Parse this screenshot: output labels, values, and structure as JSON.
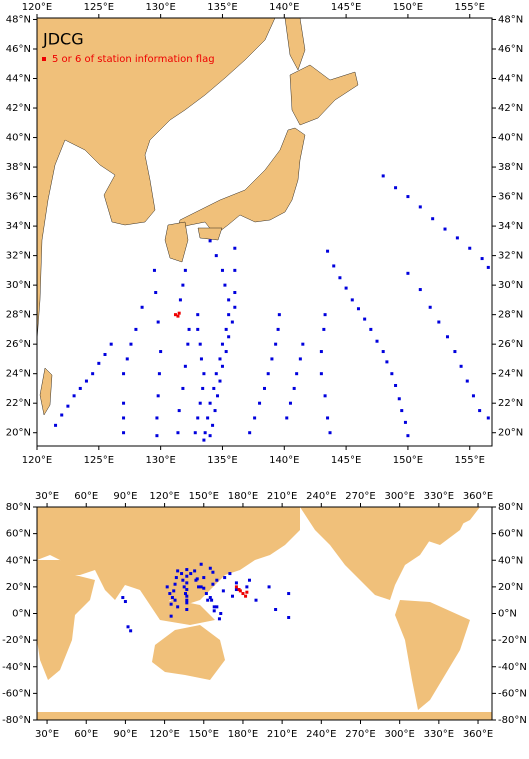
{
  "header": {
    "title": "JDCG",
    "legend": "5 or 6 of station information flag"
  },
  "map1": {
    "xlim": [
      120,
      156.8
    ],
    "ylim": [
      19.1,
      48.1
    ],
    "xticks": [
      {
        "value": 120,
        "label": "120°E"
      },
      {
        "value": 125,
        "label": "125°E"
      },
      {
        "value": 130,
        "label": "130°E"
      },
      {
        "value": 135,
        "label": "135°E"
      },
      {
        "value": 140,
        "label": "140°E"
      },
      {
        "value": 145,
        "label": "145°E"
      },
      {
        "value": 150,
        "label": "150°E"
      },
      {
        "value": 155,
        "label": "155°E"
      }
    ],
    "yticks": [
      {
        "value": 20,
        "label": "20°N"
      },
      {
        "value": 22,
        "label": "22°N"
      },
      {
        "value": 24,
        "label": "24°N"
      },
      {
        "value": 26,
        "label": "26°N"
      },
      {
        "value": 28,
        "label": "28°N"
      },
      {
        "value": 30,
        "label": "30°N"
      },
      {
        "value": 32,
        "label": "32°N"
      },
      {
        "value": 34,
        "label": "34°N"
      },
      {
        "value": 36,
        "label": "36°N"
      },
      {
        "value": 38,
        "label": "38°N"
      },
      {
        "value": 40,
        "label": "40°N"
      },
      {
        "value": 42,
        "label": "42°N"
      },
      {
        "value": 44,
        "label": "44°N"
      },
      {
        "value": 46,
        "label": "46°N"
      },
      {
        "value": 48,
        "label": "48°N"
      }
    ],
    "stations": {
      "color": "#0000dd",
      "lon": [
        134,
        134.5,
        135,
        135.2,
        135.5,
        135.5,
        135.3,
        135,
        134.8,
        134.5,
        134.3,
        134,
        133.8,
        133.6,
        133.5,
        136,
        136,
        136,
        136,
        135.8,
        135.5,
        135.3,
        135,
        134.8,
        134.6,
        134.4,
        134.2,
        134,
        133,
        133,
        133.2,
        133.3,
        133.5,
        133.4,
        133.2,
        133,
        132.8,
        132,
        131.8,
        131.6,
        132.3,
        132.2,
        132,
        131.8,
        131.5,
        131.4,
        129.5,
        129.6,
        129.8,
        130,
        129.9,
        129.8,
        129.7,
        129.7,
        128.5,
        128,
        127.6,
        127.3,
        127,
        127,
        127,
        127,
        126,
        125.5,
        125,
        124.5,
        124,
        123.5,
        123,
        122.5,
        122,
        121.5,
        139.6,
        139.5,
        139.3,
        139,
        138.7,
        138.4,
        138,
        137.6,
        137.2,
        143.5,
        144,
        144.5,
        145,
        145.5,
        146,
        146.5,
        147,
        147.5,
        148,
        148.3,
        148.7,
        149,
        149.3,
        149.5,
        149.8,
        150,
        143.3,
        143.2,
        143,
        143,
        143.3,
        143.5,
        143.7,
        148,
        149,
        150,
        151,
        152,
        153,
        154,
        155,
        156,
        156.5,
        150,
        151,
        151.8,
        152.5,
        153.2,
        153.8,
        154.3,
        154.8,
        155.3,
        155.8,
        156.5,
        141.5,
        141.3,
        141,
        140.8,
        140.5,
        140.2
      ],
      "lat": [
        33,
        32,
        31,
        30,
        29,
        28,
        27,
        26,
        25,
        24,
        23,
        22,
        21,
        20,
        19.5,
        32.5,
        31,
        29.5,
        28.5,
        27.5,
        26.5,
        25.5,
        24.5,
        23.5,
        22.5,
        21.5,
        20.5,
        19.8,
        28,
        27,
        26,
        25,
        24,
        23,
        22,
        21,
        20,
        31,
        30,
        29,
        27,
        26,
        24.5,
        23,
        21.5,
        20,
        31,
        29.5,
        27.5,
        25.5,
        24,
        22.5,
        21,
        19.8,
        28.5,
        27,
        26,
        25,
        24,
        22,
        21,
        20,
        26,
        25.3,
        24.7,
        24,
        23.5,
        23,
        22.5,
        21.8,
        21.2,
        20.5,
        28,
        27,
        26,
        25,
        24,
        23,
        22,
        21,
        20,
        32.3,
        31.3,
        30.5,
        29.8,
        29,
        28.4,
        27.7,
        27,
        26.2,
        25.5,
        24.8,
        24,
        23.2,
        22.3,
        21.5,
        20.7,
        19.8,
        28,
        27,
        25.5,
        24,
        22.5,
        21,
        20,
        37.4,
        36.6,
        36,
        35.3,
        34.5,
        33.8,
        33.2,
        32.5,
        31.8,
        31.2,
        30.8,
        29.7,
        28.5,
        27.5,
        26.5,
        25.5,
        24.5,
        23.5,
        22.5,
        21.5,
        21,
        26,
        25,
        24,
        23,
        22,
        21
      ]
    },
    "flagged": {
      "color": "#ee0000",
      "lon": [
        131.2,
        131.4,
        131.5
      ],
      "lat": [
        28,
        27.9,
        28.1
      ]
    }
  },
  "map2": {
    "xlim": [
      22.3,
      370.7
    ],
    "ylim": [
      -80,
      80
    ],
    "xticks": [
      {
        "value": 30,
        "label": "30°E"
      },
      {
        "value": 60,
        "label": "60°E"
      },
      {
        "value": 90,
        "label": "90°E"
      },
      {
        "value": 120,
        "label": "120°E"
      },
      {
        "value": 150,
        "label": "150°E"
      },
      {
        "value": 180,
        "label": "180°E"
      },
      {
        "value": 210,
        "label": "210°E"
      },
      {
        "value": 240,
        "label": "240°E"
      },
      {
        "value": 270,
        "label": "270°E"
      },
      {
        "value": 300,
        "label": "300°E"
      },
      {
        "value": 330,
        "label": "330°E"
      },
      {
        "value": 360,
        "label": "360°E"
      }
    ],
    "yticks": [
      {
        "value": -80,
        "label": "-80°N"
      },
      {
        "value": -60,
        "label": "-60°N"
      },
      {
        "value": -40,
        "label": "-40°N"
      },
      {
        "value": -20,
        "label": "-20°N"
      },
      {
        "value": 0,
        "label": "0°N"
      },
      {
        "value": 20,
        "label": "20°N"
      },
      {
        "value": 40,
        "label": "40°N"
      },
      {
        "value": 60,
        "label": "60°N"
      },
      {
        "value": 80,
        "label": "80°N"
      }
    ],
    "stations": {
      "color": "#0000dd",
      "lon": [
        137,
        137,
        137,
        137,
        137,
        137,
        137,
        130,
        129,
        128,
        127,
        126,
        125,
        133,
        134,
        135,
        136,
        137,
        140,
        144,
        148,
        152,
        156,
        158,
        143,
        150,
        157,
        165,
        172,
        148,
        157,
        166,
        175,
        183,
        155,
        170,
        185,
        200,
        215,
        145,
        150,
        155,
        160,
        163,
        146,
        153,
        158,
        162,
        160,
        175,
        190,
        205,
        215,
        122,
        124,
        128,
        130,
        125,
        88,
        90,
        92,
        94
      ],
      "lat": [
        33,
        28,
        23,
        18,
        13,
        8,
        3,
        32,
        27,
        22,
        17,
        12,
        7,
        30,
        25,
        20,
        15,
        10,
        30,
        25,
        20,
        15,
        10,
        5,
        32,
        27,
        22,
        17,
        13,
        37,
        31,
        27,
        23,
        20,
        34,
        30,
        25,
        20,
        15,
        26,
        19,
        12,
        5,
        0,
        20,
        10,
        2,
        -4,
        25,
        18,
        10,
        3,
        -3,
        20,
        15,
        10,
        5,
        -2,
        12,
        9,
        -10,
        -13
      ]
    },
    "flagged": {
      "color": "#ee0000",
      "lon": [
        175,
        178,
        180,
        182,
        177,
        183
      ],
      "lat": [
        20,
        17,
        15,
        13,
        18,
        16
      ]
    }
  }
}
